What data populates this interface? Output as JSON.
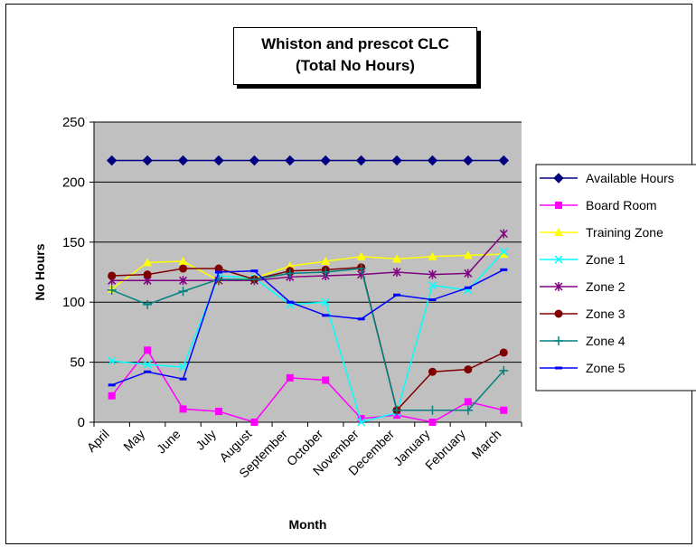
{
  "chart_data": {
    "type": "line",
    "title_line1": "Whiston and prescot CLC",
    "title_line2": "(Total No Hours)",
    "xlabel": "Month",
    "ylabel": "No Hours",
    "ylim": [
      0,
      250
    ],
    "yticks": [
      0,
      50,
      100,
      150,
      200,
      250
    ],
    "grid": true,
    "legend_position": "right",
    "plot_background": "#c0c0c0",
    "categories": [
      "April",
      "May",
      "June",
      "July",
      "August",
      "September",
      "October",
      "November",
      "December",
      "January",
      "February",
      "March"
    ],
    "series": [
      {
        "name": "Available Hours",
        "color": "#000080",
        "marker": "diamond",
        "values": [
          218,
          218,
          218,
          218,
          218,
          218,
          218,
          218,
          218,
          218,
          218,
          218
        ]
      },
      {
        "name": "Board Room",
        "color": "#ff00ff",
        "marker": "square",
        "values": [
          22,
          60,
          11,
          9,
          0,
          37,
          35,
          3,
          6,
          0,
          17,
          10
        ]
      },
      {
        "name": "Training Zone",
        "color": "#ffff00",
        "marker": "triangle",
        "values": [
          111,
          133,
          134,
          118,
          120,
          130,
          134,
          138,
          136,
          138,
          139,
          140
        ]
      },
      {
        "name": "Zone 1",
        "color": "#00ffff",
        "marker": "x",
        "values": [
          51,
          48,
          46,
          122,
          120,
          98,
          100,
          0,
          8,
          114,
          110,
          142
        ]
      },
      {
        "name": "Zone 2",
        "color": "#800080",
        "marker": "star",
        "values": [
          118,
          118,
          118,
          118,
          118,
          121,
          122,
          123,
          125,
          123,
          124,
          157
        ]
      },
      {
        "name": "Zone 3",
        "color": "#800000",
        "marker": "circle",
        "values": [
          122,
          123,
          128,
          128,
          119,
          126,
          127,
          129,
          10,
          42,
          44,
          58
        ]
      },
      {
        "name": "Zone 4",
        "color": "#008080",
        "marker": "plus",
        "values": [
          110,
          98,
          109,
          119,
          119,
          124,
          125,
          128,
          10,
          10,
          10,
          43
        ]
      },
      {
        "name": "Zone 5",
        "color": "#0000ff",
        "marker": "dash",
        "values": [
          31,
          42,
          36,
          125,
          126,
          100,
          89,
          86,
          106,
          102,
          112,
          127
        ]
      }
    ]
  }
}
